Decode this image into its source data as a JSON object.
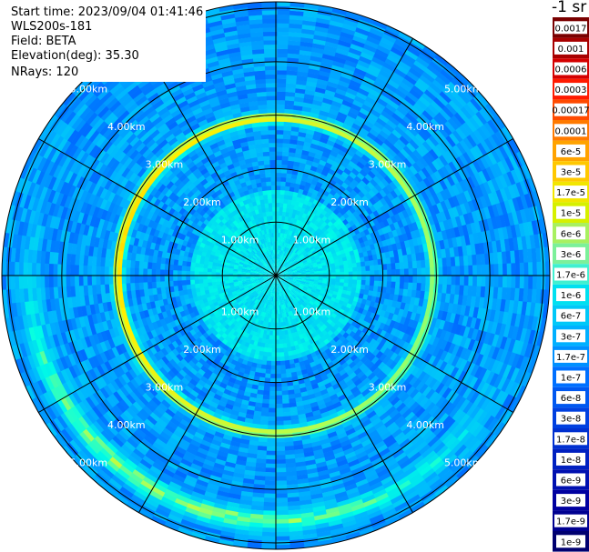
{
  "info": {
    "start_time": "Start time: 2023/09/04 01:41:46",
    "instrument": "WLS200s-181",
    "field": "Field: BETA",
    "elevation": "Elevation(deg): 35.30",
    "nrays": "NRays: 120"
  },
  "colorbar": {
    "title": "-1 sr",
    "labels": [
      "0.0017",
      "0.001",
      "0.0006",
      "0.0003",
      "0.00017",
      "0.0001",
      "6e-5",
      "3e-5",
      "1.7e-5",
      "1e-5",
      "6e-6",
      "3e-6",
      "1.7e-6",
      "1e-6",
      "6e-7",
      "3e-7",
      "1.7e-7",
      "1e-7",
      "6e-8",
      "3e-8",
      "1.7e-8",
      "1e-8",
      "6e-9",
      "3e-9",
      "1.7e-9",
      "1e-9"
    ],
    "colors": [
      "#7a0000",
      "#a80000",
      "#d40000",
      "#ff1a00",
      "#ff4a00",
      "#ff7a00",
      "#ffa300",
      "#ffc800",
      "#f2e600",
      "#d6f000",
      "#a8f060",
      "#7cf09a",
      "#40f0d0",
      "#00e0f0",
      "#00c8f8",
      "#00b0ff",
      "#0090ff",
      "#0070ff",
      "#0058f0",
      "#0040e0",
      "#0030d0",
      "#0020c0",
      "#0010b0",
      "#0000a0",
      "#000090",
      "#000070"
    ]
  },
  "chart_data": {
    "type": "heatmap",
    "projection": "polar (PPI scan)",
    "field": "BETA",
    "units": "sr-1",
    "elevation_deg": 35.3,
    "n_rays": 120,
    "range_rings_km": [
      1,
      2,
      3,
      4,
      5
    ],
    "range_labels": [
      "1.00km",
      "2.00km",
      "3.00km",
      "4.00km",
      "5.00km"
    ],
    "max_range_km": 5.12,
    "spokes_deg": [
      0,
      30,
      60,
      90,
      120,
      150,
      180,
      210,
      240,
      270,
      300,
      330
    ],
    "color_scale": "log",
    "value_range": [
      1e-09,
      0.0017
    ],
    "features": {
      "background_level": "1e-7",
      "inner_core_level": "6e-7",
      "ring": {
        "radius_km": 2.95,
        "peak_level": "6e-5",
        "bright_sector": "north-west to west"
      },
      "southern_arc": {
        "radius_km": 4.6,
        "level": "1.7e-5"
      }
    }
  }
}
